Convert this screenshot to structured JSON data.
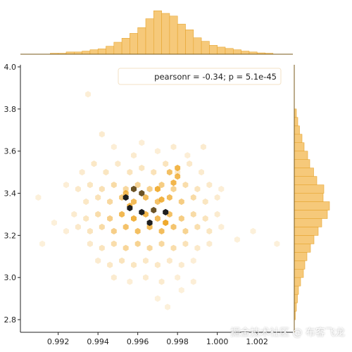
{
  "chart_data": {
    "type": "hexbin-jointplot",
    "title": "",
    "xlabel": "",
    "ylabel": "",
    "x_ticks": [
      "0.992",
      "0.994",
      "0.996",
      "0.998",
      "1.000",
      "1.002"
    ],
    "x_tick_values": [
      0.992,
      0.994,
      0.996,
      0.998,
      1.0,
      1.002
    ],
    "y_ticks": [
      "2.8",
      "3.0",
      "3.2",
      "3.4",
      "3.6",
      "3.8",
      "4.0"
    ],
    "y_tick_values": [
      2.8,
      3.0,
      3.2,
      3.4,
      3.6,
      3.8,
      4.0
    ],
    "xlim": [
      0.9901,
      1.0038
    ],
    "ylim": [
      2.74,
      4.01
    ],
    "legend_text": "pearsonr = -0.34; p = 5.1e-45",
    "legend_position": "upper-right",
    "pearson_r": -0.34,
    "p_value": "5.1e-45",
    "colors": {
      "hist_fill": "#f6c97a",
      "hist_edge": "#e6a530",
      "hex_mid": "#eea21a",
      "hex_dark": "#1a1a1a"
    },
    "hexbins": [
      [
        0.9935,
        3.87,
        0.08
      ],
      [
        0.9942,
        3.68,
        0.1
      ],
      [
        0.9948,
        3.62,
        0.08
      ],
      [
        0.9958,
        3.58,
        0.1
      ],
      [
        0.9962,
        3.64,
        0.08
      ],
      [
        0.997,
        3.6,
        0.08
      ],
      [
        0.9978,
        3.62,
        0.1
      ],
      [
        0.9985,
        3.58,
        0.08
      ],
      [
        0.9993,
        3.62,
        0.1
      ],
      [
        0.9932,
        3.5,
        0.1
      ],
      [
        0.9938,
        3.54,
        0.14
      ],
      [
        0.9944,
        3.5,
        0.16
      ],
      [
        0.995,
        3.54,
        0.12
      ],
      [
        0.9956,
        3.5,
        0.18
      ],
      [
        0.9962,
        3.52,
        0.16
      ],
      [
        0.9968,
        3.5,
        0.2
      ],
      [
        0.9974,
        3.54,
        0.18
      ],
      [
        0.998,
        3.5,
        0.14
      ],
      [
        0.9986,
        3.54,
        0.12
      ],
      [
        0.9992,
        3.5,
        0.1
      ],
      [
        0.9924,
        3.44,
        0.08
      ],
      [
        0.993,
        3.42,
        0.12
      ],
      [
        0.9936,
        3.44,
        0.16
      ],
      [
        0.9942,
        3.42,
        0.22
      ],
      [
        0.9948,
        3.44,
        0.28
      ],
      [
        0.9954,
        3.42,
        0.3
      ],
      [
        0.996,
        3.44,
        0.34
      ],
      [
        0.9966,
        3.42,
        0.38
      ],
      [
        0.9972,
        3.44,
        0.42
      ],
      [
        0.9978,
        3.42,
        0.36
      ],
      [
        0.9984,
        3.44,
        0.26
      ],
      [
        0.999,
        3.42,
        0.18
      ],
      [
        0.9996,
        3.44,
        0.12
      ],
      [
        1.0002,
        3.42,
        0.08
      ],
      [
        0.9976,
        3.5,
        0.55
      ],
      [
        0.998,
        3.48,
        0.62
      ],
      [
        0.9934,
        3.36,
        0.14
      ],
      [
        0.994,
        3.38,
        0.2
      ],
      [
        0.9946,
        3.36,
        0.3
      ],
      [
        0.9952,
        3.38,
        0.45
      ],
      [
        0.9958,
        3.36,
        0.6
      ],
      [
        0.9964,
        3.38,
        0.58
      ],
      [
        0.997,
        3.36,
        0.52
      ],
      [
        0.9976,
        3.38,
        0.58
      ],
      [
        0.9982,
        3.36,
        0.42
      ],
      [
        0.9988,
        3.38,
        0.28
      ],
      [
        0.9994,
        3.36,
        0.16
      ],
      [
        1.0,
        3.38,
        0.1
      ],
      [
        0.9954,
        3.4,
        0.62
      ],
      [
        0.9956,
        3.34,
        0.7
      ],
      [
        0.9928,
        3.3,
        0.1
      ],
      [
        0.9934,
        3.28,
        0.16
      ],
      [
        0.994,
        3.3,
        0.26
      ],
      [
        0.9946,
        3.28,
        0.4
      ],
      [
        0.9952,
        3.3,
        0.62
      ],
      [
        0.9958,
        3.28,
        0.7
      ],
      [
        0.9964,
        3.3,
        0.66
      ],
      [
        0.997,
        3.28,
        0.6
      ],
      [
        0.9976,
        3.3,
        0.55
      ],
      [
        0.9982,
        3.28,
        0.42
      ],
      [
        0.9988,
        3.3,
        0.28
      ],
      [
        0.9994,
        3.28,
        0.18
      ],
      [
        1.0,
        3.3,
        0.1
      ],
      [
        0.9924,
        3.22,
        0.08
      ],
      [
        0.993,
        3.24,
        0.12
      ],
      [
        0.9936,
        3.22,
        0.18
      ],
      [
        0.9942,
        3.24,
        0.28
      ],
      [
        0.9948,
        3.22,
        0.4
      ],
      [
        0.9954,
        3.24,
        0.52
      ],
      [
        0.996,
        3.22,
        0.56
      ],
      [
        0.9966,
        3.24,
        0.62
      ],
      [
        0.9972,
        3.22,
        0.58
      ],
      [
        0.9978,
        3.24,
        0.5
      ],
      [
        0.9984,
        3.22,
        0.36
      ],
      [
        0.999,
        3.24,
        0.24
      ],
      [
        0.9996,
        3.22,
        0.16
      ],
      [
        1.0002,
        3.24,
        0.08
      ],
      [
        0.9936,
        3.16,
        0.12
      ],
      [
        0.9942,
        3.14,
        0.18
      ],
      [
        0.9948,
        3.16,
        0.26
      ],
      [
        0.9954,
        3.14,
        0.32
      ],
      [
        0.996,
        3.16,
        0.36
      ],
      [
        0.9966,
        3.14,
        0.3
      ],
      [
        0.9972,
        3.16,
        0.3
      ],
      [
        0.9978,
        3.14,
        0.26
      ],
      [
        0.9984,
        3.16,
        0.2
      ],
      [
        0.999,
        3.14,
        0.12
      ],
      [
        0.9996,
        3.16,
        0.1
      ],
      [
        0.994,
        3.08,
        0.1
      ],
      [
        0.9946,
        3.06,
        0.14
      ],
      [
        0.9952,
        3.08,
        0.18
      ],
      [
        0.9958,
        3.06,
        0.16
      ],
      [
        0.9964,
        3.08,
        0.14
      ],
      [
        0.997,
        3.06,
        0.14
      ],
      [
        0.9976,
        3.08,
        0.12
      ],
      [
        0.9982,
        3.06,
        0.1
      ],
      [
        0.9988,
        3.08,
        0.08
      ],
      [
        0.9948,
        3.0,
        0.1
      ],
      [
        0.9956,
        2.98,
        0.08
      ],
      [
        0.9964,
        3.0,
        0.1
      ],
      [
        0.9972,
        2.98,
        0.1
      ],
      [
        0.998,
        3.0,
        0.08
      ],
      [
        0.9988,
        2.98,
        0.08
      ],
      [
        0.997,
        2.9,
        0.06
      ],
      [
        0.9975,
        2.86,
        0.06
      ],
      [
        0.9982,
        2.94,
        0.06
      ],
      [
        0.991,
        3.38,
        0.06
      ],
      [
        0.9912,
        3.16,
        0.06
      ],
      [
        0.9918,
        3.26,
        0.06
      ],
      [
        1.001,
        3.18,
        0.06
      ],
      [
        1.0018,
        3.22,
        0.06
      ],
      [
        1.003,
        3.16,
        0.06
      ],
      [
        0.9954,
        3.38,
        1.0
      ],
      [
        0.9956,
        3.33,
        0.9
      ],
      [
        0.9962,
        3.4,
        0.85
      ],
      [
        0.9966,
        3.26,
        0.92
      ],
      [
        0.9968,
        3.32,
        0.85
      ],
      [
        0.9972,
        3.37,
        0.7
      ],
      [
        0.9974,
        3.31,
        0.95
      ],
      [
        0.9962,
        3.31,
        0.95
      ],
      [
        0.9958,
        3.42,
        0.88
      ],
      [
        0.997,
        3.42,
        0.72
      ],
      [
        0.9978,
        3.45,
        0.65
      ],
      [
        0.998,
        3.52,
        0.66
      ],
      [
        0.9974,
        3.26,
        0.78
      ]
    ],
    "x_hist_bins": [
      0.9912,
      0.9916,
      0.992,
      0.9924,
      0.9928,
      0.9932,
      0.9936,
      0.994,
      0.9944,
      0.9948,
      0.9952,
      0.9956,
      0.996,
      0.9964,
      0.9968,
      0.9972,
      0.9976,
      0.998,
      0.9984,
      0.9988,
      0.9992,
      0.9996,
      1.0,
      1.0004,
      1.0008,
      1.0012,
      1.0016,
      1.002,
      1.0024,
      1.0028
    ],
    "x_hist_counts": [
      0.0,
      0.02,
      0.02,
      0.05,
      0.05,
      0.07,
      0.1,
      0.12,
      0.18,
      0.27,
      0.36,
      0.47,
      0.6,
      0.8,
      0.98,
      0.92,
      0.86,
      0.68,
      0.55,
      0.37,
      0.29,
      0.2,
      0.16,
      0.13,
      0.1,
      0.07,
      0.05,
      0.03,
      0.02,
      0.0
    ],
    "y_hist_bins": [
      2.8,
      2.84,
      2.88,
      2.92,
      2.96,
      3.0,
      3.04,
      3.08,
      3.12,
      3.16,
      3.2,
      3.24,
      3.28,
      3.32,
      3.36,
      3.4,
      3.44,
      3.48,
      3.52,
      3.56,
      3.6,
      3.64,
      3.68,
      3.72,
      3.76
    ],
    "y_hist_counts": [
      0.03,
      0.06,
      0.09,
      0.12,
      0.18,
      0.26,
      0.3,
      0.36,
      0.46,
      0.56,
      0.68,
      0.78,
      0.94,
      1.0,
      0.82,
      0.84,
      0.64,
      0.55,
      0.44,
      0.38,
      0.28,
      0.22,
      0.15,
      0.1,
      0.06
    ]
  },
  "watermark": "掘金技术社区 @ 布客飞龙"
}
